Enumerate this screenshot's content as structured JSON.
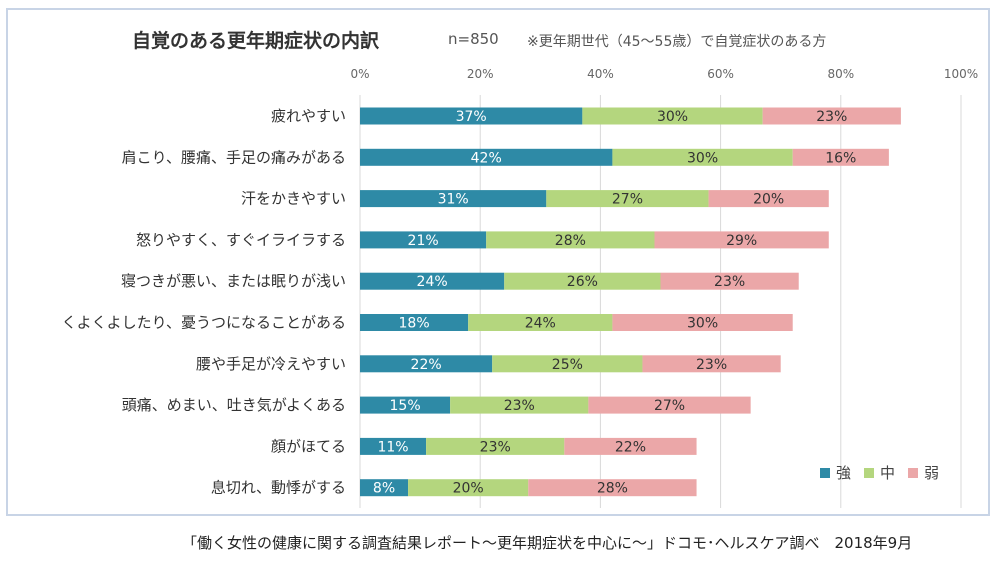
{
  "header": {
    "title": "自覚のある更年期症状の内訳",
    "n_label": "n=850",
    "note": "※更年期世代（45～55歳）で自覚症状のある方"
  },
  "footer": {
    "source": "「働く女性の健康に関する調査結果レポート～更年期症状を中心に～」ドコモ･ヘルスケア調べ　2018年9月"
  },
  "chart_data": {
    "type": "bar",
    "orientation": "horizontal",
    "stacked": true,
    "categories": [
      "疲れやすい",
      "肩こり、腰痛、手足の痛みがある",
      "汗をかきやすい",
      "怒りやすく、すぐイライラする",
      "寝つきが悪い、または眠りが浅い",
      "くよくよしたり、憂うつになることがある",
      "腰や手足が冷えやすい",
      "頭痛、めまい、吐き気がよくある",
      "顔がほてる",
      "息切れ、動悸がする"
    ],
    "series": [
      {
        "name": "強",
        "color": "#2e8aa6",
        "label_color": "#ffffff",
        "values": [
          37,
          42,
          31,
          21,
          24,
          18,
          22,
          15,
          11,
          8
        ]
      },
      {
        "name": "中",
        "color": "#b4d67e",
        "label_color": "#333333",
        "values": [
          30,
          30,
          27,
          28,
          26,
          24,
          25,
          23,
          23,
          20
        ]
      },
      {
        "name": "弱",
        "color": "#eba7a8",
        "label_color": "#333333",
        "values": [
          23,
          16,
          20,
          29,
          23,
          30,
          23,
          27,
          22,
          28
        ]
      }
    ],
    "x_ticks": [
      "0%",
      "20%",
      "40%",
      "60%",
      "80%",
      "100%"
    ],
    "xlim": [
      0,
      100
    ],
    "value_suffix": "%",
    "grid": true,
    "legend_position": "bottom-right"
  }
}
